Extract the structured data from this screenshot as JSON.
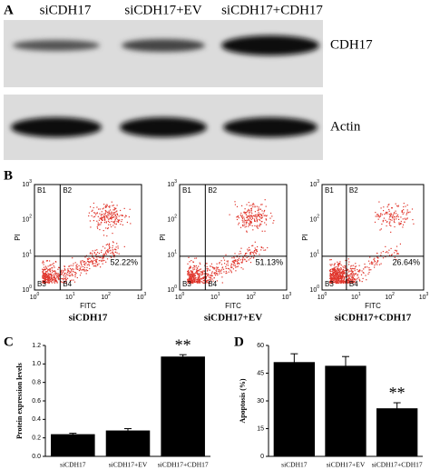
{
  "western_blot": {
    "panel_label": "A",
    "lanes": [
      "siCDH17",
      "siCDH17+EV",
      "siCDH17+CDH17"
    ],
    "rows": [
      "CDH17",
      "Actin"
    ]
  },
  "flow": {
    "panel_label": "B",
    "x_label": "FITC",
    "y_label": "PI",
    "tick_base": "10",
    "tick_exponents": [
      "0",
      "1",
      "2",
      "3"
    ],
    "quadrants": [
      "B1",
      "B2",
      "B3",
      "B4"
    ],
    "plots": [
      {
        "name": "siCDH17",
        "percent": "52.22%"
      },
      {
        "name": "siCDH17+EV",
        "percent": "51.13%"
      },
      {
        "name": "siCDH17+CDH17",
        "percent": "26.64%"
      }
    ]
  },
  "chart_data": [
    {
      "type": "bar",
      "panel_label": "C",
      "y_label": "Protein expression levels",
      "categories": [
        "siCDH17",
        "siCDH17+EV",
        "siCDH17+CDH17"
      ],
      "values": [
        0.24,
        0.28,
        1.08
      ],
      "errors": [
        0.01,
        0.02,
        0.02
      ],
      "annotations": [
        null,
        null,
        "**"
      ],
      "color": "#000000",
      "ylim": [
        0,
        1.2
      ],
      "yticks": [
        {
          "value": 0,
          "label": "0.0"
        },
        {
          "value": 0.2,
          "label": "0.2"
        },
        {
          "value": 0.4,
          "label": "0.4"
        },
        {
          "value": 0.6,
          "label": "0.6"
        },
        {
          "value": 0.8,
          "label": "0.8"
        },
        {
          "value": 1.0,
          "label": "1.0"
        },
        {
          "value": 1.2,
          "label": "1.2"
        }
      ]
    },
    {
      "type": "bar",
      "panel_label": "D",
      "y_label": "Apoptosis (%)",
      "categories": [
        "siCDH17",
        "siCDH17+EV",
        "siCDH17+CDH17"
      ],
      "values": [
        51,
        49,
        26
      ],
      "errors": [
        4.5,
        5,
        3
      ],
      "annotations": [
        null,
        null,
        "**"
      ],
      "color": "#000000",
      "ylim": [
        0,
        60
      ],
      "yticks": [
        0,
        15,
        30,
        45,
        60
      ]
    }
  ]
}
